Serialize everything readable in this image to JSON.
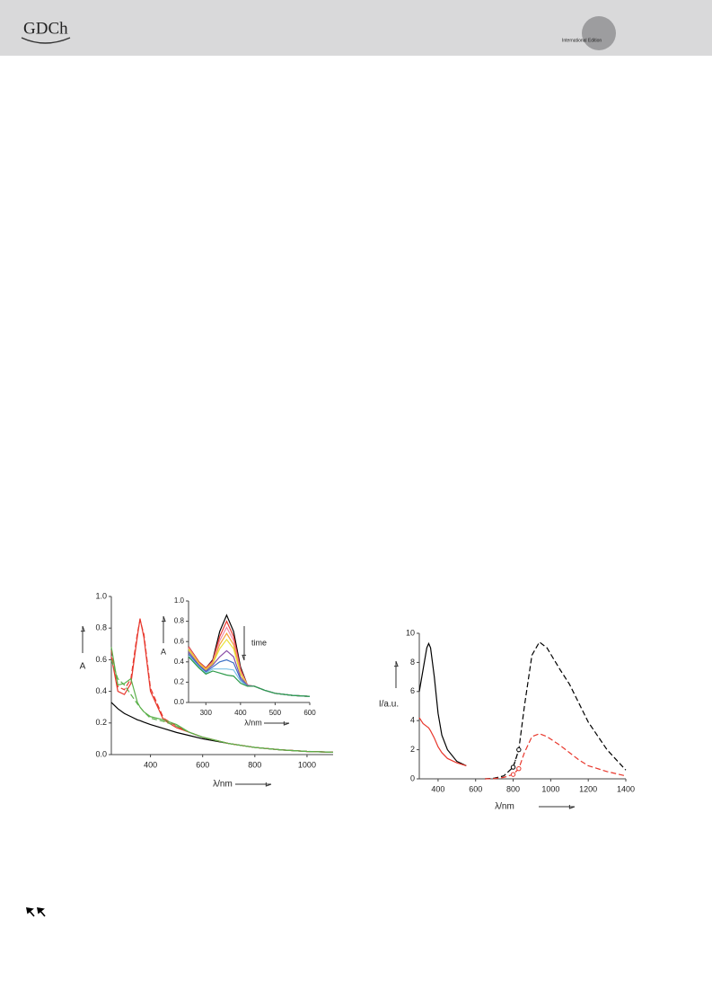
{
  "header": {
    "logo": "GDCh",
    "edition": "International Edition"
  },
  "chart_data": [
    {
      "type": "line",
      "x_label": "λ/nm",
      "y_label": "A",
      "xlim": [
        250,
        1100
      ],
      "xticks": [
        400,
        600,
        800,
        1000
      ],
      "ylim": [
        0,
        1
      ],
      "yticks": [
        {
          "value": 0,
          "label": "0.0"
        },
        0.2,
        0.4,
        0.6,
        0.8,
        {
          "value": 1,
          "label": "1.0"
        }
      ],
      "x": [
        250,
        275,
        300,
        325,
        350,
        360,
        375,
        400,
        450,
        500,
        550,
        600,
        700,
        800,
        900,
        1000,
        1100
      ],
      "series": [
        {
          "color": "#000000",
          "style": "solid",
          "values": [
            0.33,
            0.29,
            0.26,
            0.24,
            0.22,
            0.215,
            0.205,
            0.19,
            0.165,
            0.14,
            0.12,
            0.1,
            0.07,
            0.045,
            0.03,
            0.02,
            0.015
          ]
        },
        {
          "color": "#e8372c",
          "style": "solid",
          "values": [
            0.62,
            0.4,
            0.38,
            0.45,
            0.75,
            0.86,
            0.74,
            0.4,
            0.22,
            0.17,
            0.14,
            0.11,
            0.07,
            0.045,
            0.03,
            0.02,
            0.015
          ]
        },
        {
          "color": "#e8372c",
          "style": "dashed",
          "values": [
            0.66,
            0.43,
            0.41,
            0.48,
            0.77,
            0.85,
            0.76,
            0.42,
            0.23,
            0.18,
            0.14,
            0.11,
            0.07,
            0.045,
            0.03,
            0.02,
            0.015
          ]
        },
        {
          "color": "#5bb04a",
          "style": "solid",
          "values": [
            0.68,
            0.44,
            0.45,
            0.48,
            0.33,
            0.3,
            0.27,
            0.24,
            0.22,
            0.19,
            0.14,
            0.11,
            0.07,
            0.045,
            0.03,
            0.02,
            0.015
          ]
        },
        {
          "color": "#5bb04a",
          "style": "dashed",
          "values": [
            0.6,
            0.48,
            0.44,
            0.38,
            0.32,
            0.3,
            0.27,
            0.23,
            0.21,
            0.18,
            0.14,
            0.11,
            0.07,
            0.045,
            0.03,
            0.02,
            0.015
          ]
        }
      ]
    },
    {
      "type": "line",
      "x_label": "λ/nm",
      "y_label": "A",
      "annotation": "time",
      "xlim": [
        250,
        600
      ],
      "xticks": [
        300,
        400,
        500,
        600
      ],
      "ylim": [
        0,
        1
      ],
      "yticks": [
        {
          "value": 0,
          "label": "0.0"
        },
        0.2,
        0.4,
        0.6,
        0.8,
        {
          "value": 1,
          "label": "1.0"
        }
      ],
      "x": [
        250,
        280,
        300,
        320,
        340,
        360,
        380,
        400,
        420,
        440,
        470,
        500,
        550,
        600
      ],
      "series": [
        {
          "color": "#000000",
          "style": "solid",
          "values": [
            0.55,
            0.4,
            0.34,
            0.42,
            0.7,
            0.86,
            0.7,
            0.35,
            0.17,
            0.16,
            0.12,
            0.09,
            0.07,
            0.06
          ]
        },
        {
          "color": "#e8372c",
          "style": "solid",
          "values": [
            0.55,
            0.4,
            0.34,
            0.41,
            0.65,
            0.8,
            0.65,
            0.33,
            0.17,
            0.16,
            0.12,
            0.09,
            0.07,
            0.06
          ]
        },
        {
          "color": "#f08aa8",
          "style": "solid",
          "values": [
            0.54,
            0.39,
            0.33,
            0.4,
            0.61,
            0.74,
            0.61,
            0.31,
            0.17,
            0.16,
            0.12,
            0.09,
            0.07,
            0.06
          ]
        },
        {
          "color": "#f4a23a",
          "style": "solid",
          "values": [
            0.53,
            0.39,
            0.33,
            0.39,
            0.57,
            0.68,
            0.57,
            0.29,
            0.17,
            0.16,
            0.12,
            0.09,
            0.07,
            0.06
          ]
        },
        {
          "color": "#e8e23a",
          "style": "solid",
          "values": [
            0.52,
            0.38,
            0.32,
            0.38,
            0.53,
            0.62,
            0.53,
            0.28,
            0.17,
            0.16,
            0.12,
            0.09,
            0.07,
            0.06
          ]
        },
        {
          "color": "#8a4fa8",
          "style": "solid",
          "values": [
            0.5,
            0.37,
            0.31,
            0.37,
            0.45,
            0.51,
            0.45,
            0.25,
            0.17,
            0.16,
            0.12,
            0.09,
            0.07,
            0.06
          ]
        },
        {
          "color": "#3c6fc4",
          "style": "solid",
          "values": [
            0.48,
            0.36,
            0.3,
            0.35,
            0.4,
            0.42,
            0.39,
            0.23,
            0.16,
            0.16,
            0.12,
            0.09,
            0.07,
            0.06
          ]
        },
        {
          "color": "#7fc3e8",
          "style": "solid",
          "values": [
            0.46,
            0.35,
            0.29,
            0.33,
            0.33,
            0.33,
            0.32,
            0.21,
            0.16,
            0.16,
            0.12,
            0.09,
            0.07,
            0.06
          ]
        },
        {
          "color": "#2e9b4a",
          "style": "solid",
          "values": [
            0.45,
            0.34,
            0.28,
            0.31,
            0.29,
            0.27,
            0.26,
            0.19,
            0.16,
            0.16,
            0.12,
            0.09,
            0.07,
            0.06
          ]
        }
      ]
    },
    {
      "type": "line",
      "x_label": "λ/nm",
      "y_label": "I/a.u.",
      "xlim": [
        300,
        1400
      ],
      "xticks": [
        400,
        600,
        800,
        1000,
        1200,
        1400
      ],
      "ylim": [
        0,
        10
      ],
      "yticks": [
        0,
        2,
        4,
        6,
        8,
        10
      ],
      "series": [
        {
          "color": "#000000",
          "style": "solid",
          "x": [
            300,
            320,
            340,
            350,
            360,
            380,
            400,
            420,
            450,
            500,
            550
          ],
          "values": [
            6,
            7.5,
            9,
            9.3,
            9,
            7,
            4.5,
            3,
            2,
            1.2,
            0.9
          ]
        },
        {
          "color": "#e8372c",
          "style": "solid",
          "x": [
            300,
            320,
            340,
            350,
            360,
            380,
            400,
            420,
            450,
            500,
            550
          ],
          "values": [
            4.2,
            3.8,
            3.6,
            3.5,
            3.3,
            2.8,
            2.2,
            1.8,
            1.4,
            1.1,
            0.9
          ]
        },
        {
          "color": "#000000",
          "style": "dashed",
          "x": [
            650,
            700,
            750,
            800,
            830,
            860,
            900,
            940,
            980,
            1050,
            1100,
            1150,
            1200,
            1300,
            1400
          ],
          "values": [
            0,
            0.05,
            0.2,
            0.8,
            2,
            5,
            8.5,
            9.4,
            9,
            7.5,
            6.5,
            5.2,
            3.9,
            2,
            0.6
          ]
        },
        {
          "color": "#e8372c",
          "style": "dashed",
          "x": [
            650,
            700,
            750,
            800,
            830,
            860,
            900,
            940,
            980,
            1050,
            1100,
            1150,
            1200,
            1300,
            1400
          ],
          "values": [
            0,
            0.02,
            0.1,
            0.3,
            0.7,
            1.8,
            2.9,
            3.1,
            2.9,
            2.3,
            1.8,
            1.3,
            0.9,
            0.5,
            0.2
          ]
        },
        {
          "color": "#000000",
          "style": "dotted",
          "marker": "circle",
          "x": [
            800,
            830
          ],
          "values": [
            0.8,
            2
          ]
        },
        {
          "color": "#e8372c",
          "style": "dotted",
          "marker": "circle",
          "x": [
            800,
            830
          ],
          "values": [
            0.3,
            0.7
          ]
        }
      ]
    }
  ]
}
